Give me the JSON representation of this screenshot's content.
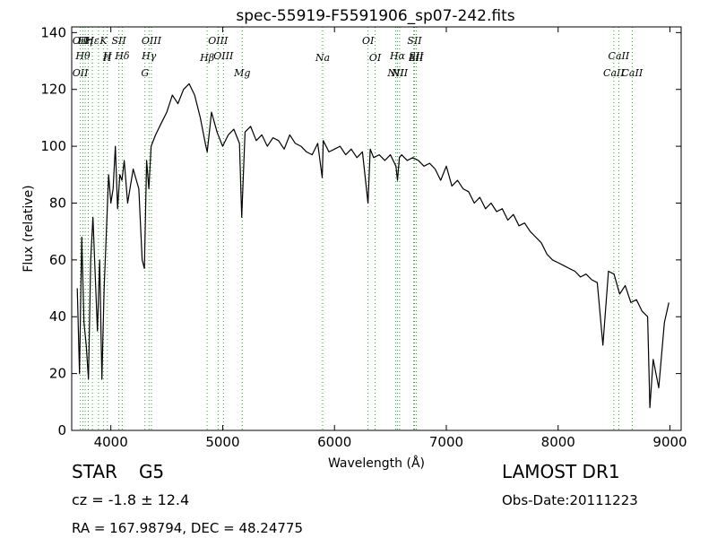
{
  "chart_data": {
    "type": "line",
    "title": "spec-55919-F5591906_sp07-242.fits",
    "xlabel": "Wavelength (Å)",
    "ylabel": "Flux (relative)",
    "xlim": [
      3650,
      9100
    ],
    "ylim": [
      0,
      142
    ],
    "xticks": [
      4000,
      5000,
      6000,
      7000,
      8000,
      9000
    ],
    "yticks": [
      0,
      20,
      40,
      60,
      80,
      100,
      120,
      140
    ],
    "grid": false,
    "line_color": "#000000",
    "marker_color": "#2ca02c",
    "x": [
      3700,
      3720,
      3740,
      3760,
      3780,
      3800,
      3820,
      3840,
      3860,
      3880,
      3900,
      3920,
      3940,
      3960,
      3980,
      4000,
      4020,
      4040,
      4060,
      4080,
      4100,
      4120,
      4150,
      4200,
      4250,
      4280,
      4300,
      4320,
      4340,
      4360,
      4400,
      4450,
      4500,
      4550,
      4600,
      4650,
      4700,
      4750,
      4800,
      4850,
      4862,
      4900,
      4950,
      5000,
      5050,
      5100,
      5150,
      5170,
      5200,
      5250,
      5300,
      5350,
      5400,
      5450,
      5500,
      5550,
      5600,
      5650,
      5700,
      5750,
      5800,
      5850,
      5890,
      5900,
      5950,
      6000,
      6050,
      6100,
      6150,
      6200,
      6250,
      6300,
      6320,
      6350,
      6400,
      6450,
      6500,
      6550,
      6563,
      6580,
      6600,
      6650,
      6700,
      6750,
      6800,
      6850,
      6900,
      6950,
      7000,
      7050,
      7100,
      7150,
      7200,
      7250,
      7300,
      7350,
      7400,
      7450,
      7500,
      7550,
      7600,
      7650,
      7700,
      7750,
      7800,
      7850,
      7900,
      7950,
      8000,
      8050,
      8100,
      8150,
      8200,
      8250,
      8300,
      8350,
      8400,
      8450,
      8500,
      8550,
      8600,
      8650,
      8700,
      8750,
      8800,
      8820,
      8850,
      8900,
      8950,
      8990
    ],
    "y": [
      50,
      20,
      68,
      38,
      30,
      18,
      60,
      75,
      55,
      35,
      60,
      18,
      50,
      70,
      90,
      80,
      85,
      100,
      78,
      90,
      88,
      95,
      80,
      92,
      85,
      60,
      57,
      95,
      85,
      100,
      104,
      108,
      112,
      118,
      115,
      120,
      122,
      118,
      110,
      100,
      98,
      112,
      105,
      100,
      104,
      106,
      101,
      75,
      105,
      107,
      102,
      104,
      100,
      103,
      102,
      99,
      104,
      101,
      100,
      98,
      97,
      101,
      89,
      102,
      98,
      99,
      100,
      97,
      99,
      96,
      98,
      80,
      99,
      96,
      97,
      95,
      97,
      93,
      88,
      96,
      97,
      95,
      96,
      95,
      93,
      94,
      92,
      88,
      93,
      86,
      88,
      85,
      84,
      80,
      82,
      78,
      80,
      77,
      78,
      74,
      76,
      72,
      73,
      70,
      68,
      66,
      62,
      60,
      59,
      58,
      57,
      56,
      54,
      55,
      53,
      52,
      30,
      56,
      55,
      48,
      51,
      45,
      46,
      42,
      40,
      8,
      25,
      15,
      38,
      45
    ],
    "lines": [
      {
        "x": 3727,
        "top": "OII",
        "bottom": "OII"
      },
      {
        "x": 3750,
        "top": "Hθ",
        "bottom": ""
      },
      {
        "x": 3771,
        "top": "Hη",
        "bottom": ""
      },
      {
        "x": 3798,
        "top": "",
        "bottom": ""
      },
      {
        "x": 3835,
        "top": "Hε",
        "bottom": ""
      },
      {
        "x": 3889,
        "top": "",
        "bottom": ""
      },
      {
        "x": 3934,
        "top": "K",
        "bottom": ""
      },
      {
        "x": 3969,
        "top": "H",
        "bottom": "H"
      },
      {
        "x": 4072,
        "top": "SII",
        "bottom": ""
      },
      {
        "x": 4102,
        "top": "Hδ",
        "bottom": ""
      },
      {
        "x": 4305,
        "top": "",
        "bottom": "G"
      },
      {
        "x": 4341,
        "top": "Hγ",
        "bottom": ""
      },
      {
        "x": 4363,
        "top": "OIII",
        "bottom": ""
      },
      {
        "x": 4861,
        "top": "",
        "bottom": "Hβ"
      },
      {
        "x": 4959,
        "top": "OIII",
        "bottom": ""
      },
      {
        "x": 5007,
        "top": "OIII",
        "bottom": ""
      },
      {
        "x": 5175,
        "top": "",
        "bottom": "Mg"
      },
      {
        "x": 5894,
        "top": "",
        "bottom": "Na"
      },
      {
        "x": 6300,
        "top": "OI",
        "bottom": ""
      },
      {
        "x": 6363,
        "top": "",
        "bottom": "OI"
      },
      {
        "x": 6548,
        "top": "",
        "bottom": "NII"
      },
      {
        "x": 6563,
        "top": "Hα",
        "bottom": ""
      },
      {
        "x": 6583,
        "top": "",
        "bottom": "NII"
      },
      {
        "x": 6708,
        "top": "",
        "bottom": "Li"
      },
      {
        "x": 6716,
        "top": "SII",
        "bottom": ""
      },
      {
        "x": 6731,
        "top": "SII",
        "bottom": "SII"
      },
      {
        "x": 8498,
        "top": "",
        "bottom": "CaII"
      },
      {
        "x": 8542,
        "top": "CaII",
        "bottom": ""
      },
      {
        "x": 8662,
        "top": "",
        "bottom": "CaII"
      }
    ]
  },
  "info": {
    "class": "STAR",
    "subclass": "G5",
    "survey": "LAMOST DR1",
    "cz": "cz = -1.8 ± 12.4",
    "obs_date": "Obs-Date:20111223",
    "radec": "RA = 167.98794, DEC = 48.24775"
  }
}
